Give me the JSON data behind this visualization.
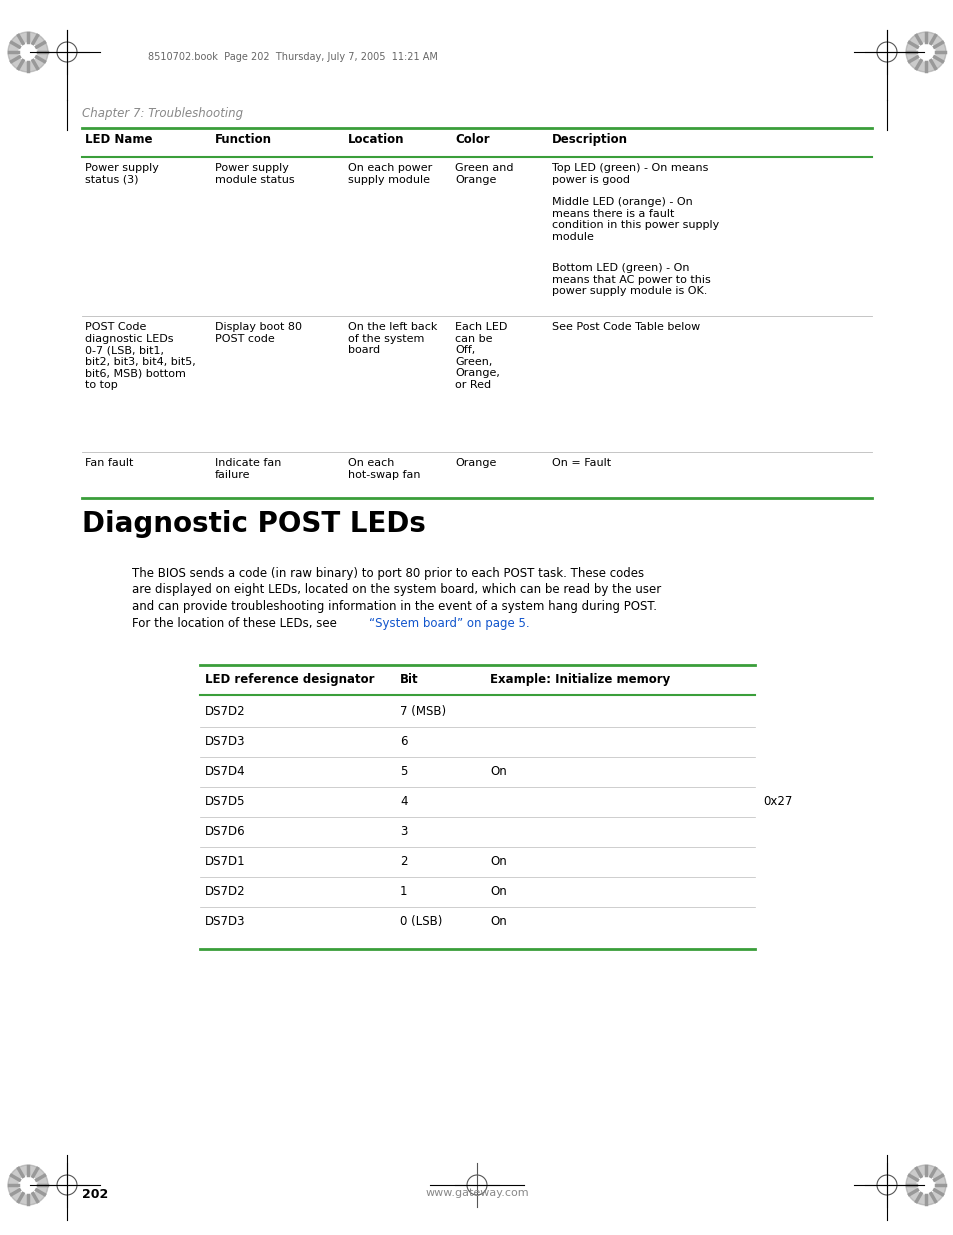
{
  "page_number": "202",
  "website": "www.gateway.com",
  "header_text": "8510702.book  Page 202  Thursday, July 7, 2005  11:21 AM",
  "chapter_label": "Chapter 7: Troubleshooting",
  "section_title": "Diagnostic POST LEDs",
  "table1_headers": [
    "LED Name",
    "Function",
    "Location",
    "Color",
    "Description"
  ],
  "table2_headers": [
    "LED reference designator",
    "Bit",
    "Example: Initialize memory"
  ],
  "table2_rows": [
    [
      "DS7D2",
      "7 (MSB)",
      ""
    ],
    [
      "DS7D3",
      "6",
      ""
    ],
    [
      "DS7D4",
      "5",
      "On"
    ],
    [
      "DS7D5",
      "4",
      ""
    ],
    [
      "DS7D6",
      "3",
      ""
    ],
    [
      "DS7D1",
      "2",
      "On"
    ],
    [
      "DS7D2",
      "1",
      "On"
    ],
    [
      "DS7D3",
      "0 (LSB)",
      "On"
    ]
  ],
  "table2_annotation": "0x27",
  "green_color": "#3a9e3a",
  "blue_link_color": "#1155cc",
  "bg_color": "#ffffff",
  "text_color": "#000000",
  "gray_text": "#777777",
  "sep_color": "#bbbbbb"
}
